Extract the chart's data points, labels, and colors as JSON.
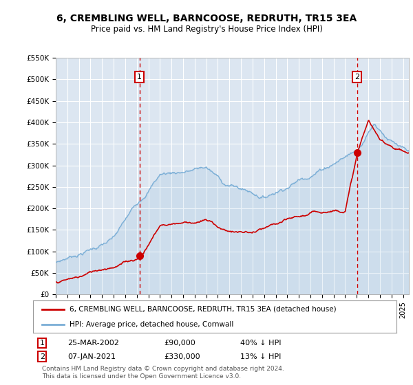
{
  "title": "6, CREMBLING WELL, BARNCOOSE, REDRUTH, TR15 3EA",
  "subtitle": "Price paid vs. HM Land Registry's House Price Index (HPI)",
  "outer_bg_color": "#ffffff",
  "plot_bg_color": "#dce6f1",
  "ylabel_ticks": [
    "£0",
    "£50K",
    "£100K",
    "£150K",
    "£200K",
    "£250K",
    "£300K",
    "£350K",
    "£400K",
    "£450K",
    "£500K",
    "£550K"
  ],
  "ylim": [
    0,
    550000
  ],
  "xlim_start": 1995.0,
  "xlim_end": 2025.5,
  "sale1_x": 2002.23,
  "sale1_y": 90000,
  "sale2_x": 2021.03,
  "sale2_y": 330000,
  "red_line_color": "#cc0000",
  "blue_line_color": "#7aaed6",
  "grid_color": "#ffffff",
  "legend_line1": "6, CREMBLING WELL, BARNCOOSE, REDRUTH, TR15 3EA (detached house)",
  "legend_line2": "HPI: Average price, detached house, Cornwall",
  "sale1_date": "25-MAR-2002",
  "sale1_price": "£90,000",
  "sale1_hpi": "40% ↓ HPI",
  "sale2_date": "07-JAN-2021",
  "sale2_price": "£330,000",
  "sale2_hpi": "13% ↓ HPI",
  "footer": "Contains HM Land Registry data © Crown copyright and database right 2024.\nThis data is licensed under the Open Government Licence v3.0.",
  "marker_box_color": "#cc0000",
  "dashed_line_color": "#cc0000"
}
